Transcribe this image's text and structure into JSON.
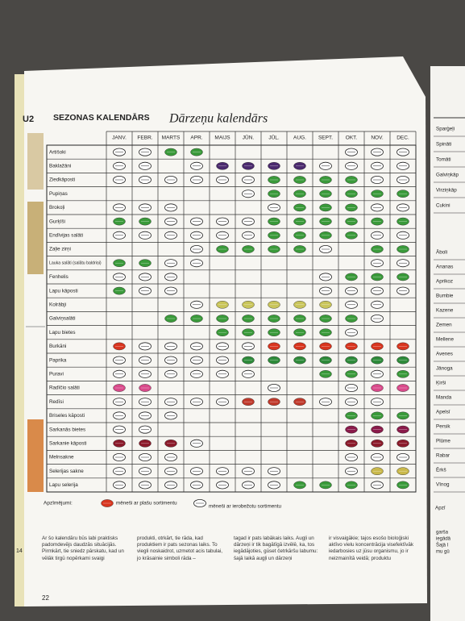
{
  "page": {
    "section_mark": "U2",
    "heading": "SEZONAS KALENDĀRS",
    "title": "Dārzeņu kalendārs",
    "months": [
      "JANV.",
      "FEBR.",
      "MARTS",
      "APR.",
      "MAIJS",
      "JŪN.",
      "JŪL.",
      "AUG.",
      "SEPT.",
      "OKT.",
      "NOV.",
      "DEC."
    ],
    "legend": {
      "label": "Apzīmējumi:",
      "full": "mēneši ar plašu sortimentu",
      "limited": "mēneši ar ierobežotu sortimentu",
      "full_color": "#d8351f"
    },
    "rows": [
      {
        "name": "Artišoki",
        "availability": "oocc-----ooo",
        "color": "#3a9a3a"
      },
      {
        "name": "Baklažāni",
        "availability": "oo-occccoooo",
        "color": "#4b2a6e"
      },
      {
        "name": "Ziedkāposti",
        "availability": "ooooooccccoo",
        "color": "#3a9a3a"
      },
      {
        "name": "Pupiņas",
        "availability": "-----occcccc",
        "color": "#3a9a3a"
      },
      {
        "name": "Brokoļi",
        "availability": "ooo---occcoo",
        "color": "#3a9a3a"
      },
      {
        "name": "Gurķīši",
        "availability": "ccoooocccccc",
        "color": "#3a9a3a"
      },
      {
        "name": "Endīvijas salāti",
        "availability": "ooooooccccoo",
        "color": "#3a9a3a"
      },
      {
        "name": "Zaļie zirņi",
        "availability": "---occcco-cc",
        "color": "#3a9a3a"
      },
      {
        "name": "Lauka salāti (salātu baldriņi)",
        "availability": "ccoo------oo",
        "color": "#3a9a3a"
      },
      {
        "name": "Fenhelis",
        "availability": "ooo-----occc",
        "color": "#3a9a3a"
      },
      {
        "name": "Lapu kāposti",
        "availability": "coo-----oooo",
        "color": "#3a9a3a"
      },
      {
        "name": "Kolrābji",
        "availability": "---occcccoo-",
        "color": "#c9c55a"
      },
      {
        "name": "Galviņsalāti",
        "availability": "--cccccccco-",
        "color": "#3a9a3a"
      },
      {
        "name": "Lapu bietes",
        "availability": "----ccccco--",
        "color": "#3a9a3a"
      },
      {
        "name": "Burkāni",
        "availability": "cooooocccccc",
        "color": "#d8351f"
      },
      {
        "name": "Paprika",
        "availability": "oooooccccccc",
        "color": "#2e8b3a"
      },
      {
        "name": "Puravi",
        "availability": "oooooo--ccoc",
        "color": "#3a9a3a"
      },
      {
        "name": "Radīčio salāti",
        "availability": "cc----o--occ",
        "color": "#d94a8a"
      },
      {
        "name": "Redīsi",
        "availability": "ooooocccooo-",
        "color": "#c0392b"
      },
      {
        "name": "Briseles kāposti",
        "availability": "ooo------ccc",
        "color": "#3a9a3a"
      },
      {
        "name": "Sarkanās bietes",
        "availability": "oo-------ccc",
        "color": "#8a1a4a"
      },
      {
        "name": "Sarkanie kāposti",
        "availability": "ccco-----ccc",
        "color": "#8b1a2a"
      },
      {
        "name": "Melnsakne",
        "availability": "ooo------ooo",
        "color": "#3a9a3a"
      },
      {
        "name": "Selerijas sakne",
        "availability": "ooooooo--occ",
        "color": "#c9b84a"
      },
      {
        "name": "Lapu selerija",
        "availability": "ooooooocccoc",
        "color": "#3a9a3a"
      }
    ],
    "text_columns": [
      "Ar šo kalendāru būs labi praktisks padomdevējs daudzās situācijās. Pirmkārt, tie sniedz pārskatu, kad un vēlāk tirgū nopērkami svaigi",
      "produkti, otrkārt, tie rāda, kad produktiem ir pats sezonas laiks. To viegli noskaidrot, uzmetot acis tabulai, jo krāsainie simboli rāda –",
      "tagad ir pats labākais laiks. Augļi un dārzeņi ir tik bagātīgā izvēlē, ka, tos iegādājoties, gūset četrkāršu labumu: šajā laikā augļi un dārzeņi",
      "ir visvaigākie; tajos esošo bioloģiski aktīvo vielu koncentrācija visefektīvāk iedarbosies uz jūsu organismu, jo ir neizmainītā veidā; produktu"
    ],
    "page_numbers": [
      "14",
      "22"
    ],
    "right_page": {
      "group1": [
        "Sparģeļi",
        "Spināti",
        "Tomāti",
        "Galviņkāp",
        "Virziņkāp",
        "Cukini"
      ],
      "group2": [
        "Āboli",
        "Ananas",
        "Aprikoz",
        "Bumbie",
        "Kazene",
        "Zemen",
        "Mellene",
        "Avenes",
        "Jānoga",
        "Ķirši",
        "Manda",
        "Apelsī",
        "Persik",
        "Plūme",
        "Rabar",
        "Ērkš",
        "Vīnog"
      ],
      "legend_stub": "Apzī",
      "text_stub": [
        "garša",
        "iegādā",
        "Šajā l",
        "mu gū"
      ]
    }
  }
}
